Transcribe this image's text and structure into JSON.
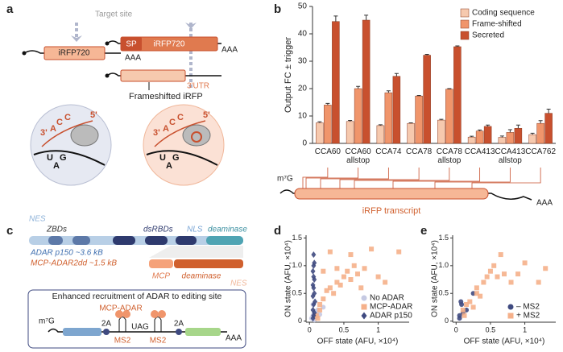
{
  "panel_a": {
    "label": "a",
    "target": "Target site",
    "left_gene": "iRFP720",
    "left_tail": "AAA",
    "sp": "SP",
    "right_gene": "iRFP720",
    "right_tail": "AAA",
    "utr": "3'UTR",
    "frameshift": "Frameshifted iRFP",
    "zoom_left": [
      "3'",
      "A",
      "C",
      "C",
      "5'",
      "U",
      "A",
      "G"
    ],
    "zoom_right": [
      "3'",
      "A",
      "C",
      "C",
      "5'",
      "U",
      "A",
      "G"
    ]
  },
  "panel_c": {
    "label": "c",
    "nes": "NES",
    "zbds": "ZBDs",
    "dsrbds": "dsRBDs",
    "nls": "NLS",
    "deaminase": "deaminase",
    "adar": "ADAR p150 ~3.6 kB",
    "mcp_adar": "MCP-ADAR2dd ~1.5 kB",
    "mcp": "MCP",
    "deaminase2": "deaminase",
    "nes2": "NES",
    "box_title": "Enhanced recruitment of ADAR to editing site",
    "protein": "MCP-ADAR",
    "cap": "m⁷G",
    "p2a_1": "2A",
    "stop": "UAG",
    "p2a_2": "2A",
    "ms2_1": "MS2",
    "ms2_2": "MS2",
    "tail": "AAA"
  },
  "chart_data": [
    {
      "type": "bar",
      "panel": "b",
      "ylabel": "Output FC ± trigger",
      "categories": [
        "CCA60",
        "CCA60 allstop",
        "CCA74",
        "CCA78",
        "CCA78 allstop",
        "CCA413",
        "CCA413 allstop",
        "CCA762"
      ],
      "series": [
        {
          "name": "Coding sequence",
          "color": "#f6c9ae",
          "values": [
            7.5,
            8,
            6.5,
            7.3,
            8.5,
            2.3,
            2.2,
            3.2
          ],
          "errors": [
            0.4,
            0.4,
            0.3,
            0.2,
            0.3,
            0.3,
            0.5,
            0.5
          ]
        },
        {
          "name": "Frame-shifted",
          "color": "#f0956b",
          "values": [
            14,
            20,
            18.5,
            17.3,
            19.8,
            4.5,
            4,
            7.3
          ],
          "errors": [
            0.6,
            0.8,
            0.7,
            0.2,
            0.2,
            0.4,
            1,
            1
          ]
        },
        {
          "name": "Secreted",
          "color": "#c8502e",
          "values": [
            44.5,
            45,
            24.5,
            32.2,
            35.3,
            6.2,
            5.5,
            11
          ],
          "errors": [
            2,
            1.8,
            1,
            0.3,
            0.3,
            0.5,
            1.2,
            1.5
          ]
        }
      ],
      "ylim": [
        0,
        50
      ],
      "yticks": [
        0,
        10,
        20,
        30,
        40,
        50
      ],
      "legend": "upper right",
      "annotations": {
        "cap": "m⁷G",
        "transcript": "iRFP transcript",
        "tail": "AAA"
      }
    },
    {
      "type": "scatter",
      "panel": "d",
      "xlabel": "OFF state (AFU, ×10⁴)",
      "ylabel": "ON state (AFU, ×10⁴)",
      "xlim": [
        -0.05,
        1.45
      ],
      "ylim": [
        -0.02,
        1.55
      ],
      "xticks": [
        0,
        0.5,
        1
      ],
      "yticks": [
        0,
        0.5,
        {
          "value": 1,
          "label": "1.0"
        },
        1.5
      ],
      "legend": "lower right",
      "series": [
        {
          "name": "No ADAR",
          "color": "#c5c9e2",
          "marker": "circle",
          "x": [
            0.03,
            0.05,
            0.08,
            0.1,
            0.12,
            0.15,
            0.2,
            0.05,
            0.07,
            0.1
          ],
          "values": [
            0.05,
            0.1,
            0.15,
            0.08,
            0.2,
            0.12,
            0.25,
            0.3,
            0.02,
            0.18
          ]
        },
        {
          "name": "MCP-ADAR",
          "color": "#f5b08a",
          "marker": "square",
          "x": [
            0.1,
            0.15,
            0.2,
            0.25,
            0.3,
            0.35,
            0.4,
            0.45,
            0.5,
            0.55,
            0.6,
            0.65,
            0.7,
            0.75,
            0.8,
            0.9,
            1.0,
            1.1,
            1.3,
            0.3,
            0.2,
            0.15,
            0.4,
            0.6,
            0.12
          ],
          "values": [
            0.1,
            0.3,
            0.4,
            0.55,
            0.6,
            0.5,
            0.7,
            0.65,
            0.8,
            0.9,
            0.75,
            1.0,
            0.85,
            0.6,
            0.95,
            1.3,
            0.8,
            0.7,
            1.25,
            1.25,
            0.9,
            0.2,
            0.95,
            1.2,
            0.05
          ]
        },
        {
          "name": "ADAR p150",
          "color": "#3f4a80",
          "marker": "diamond",
          "x": [
            0.05,
            0.06,
            0.07,
            0.05,
            0.06,
            0.08,
            0.05,
            0.07,
            0.06,
            0.05,
            0.07,
            0.06,
            0.05,
            0.06,
            0.07,
            0.06
          ],
          "values": [
            0.05,
            0.1,
            0.15,
            0.2,
            0.3,
            0.35,
            0.45,
            0.5,
            0.6,
            0.65,
            0.75,
            0.8,
            0.9,
            1.0,
            1.05,
            1.2
          ]
        }
      ]
    },
    {
      "type": "scatter",
      "panel": "e",
      "xlabel": "OFF state (AFU, ×10⁴)",
      "ylabel": "ON state (AFU, ×10⁴)",
      "xlim": [
        -0.05,
        1.45
      ],
      "ylim": [
        -0.02,
        1.55
      ],
      "xticks": [
        0,
        0.5,
        1
      ],
      "yticks": [
        0,
        0.5,
        {
          "value": 1,
          "label": "1.0"
        },
        1.5
      ],
      "legend": "lower right",
      "series": [
        {
          "name": "– MS2",
          "color": "#3f4a80",
          "marker": "circle",
          "x": [
            0.05,
            0.08,
            0.1,
            0.07,
            0.25,
            0.15,
            0.05
          ],
          "values": [
            0.05,
            0.3,
            0.15,
            0.35,
            0.5,
            0.2,
            0.1
          ]
        },
        {
          "name": "+ MS2",
          "color": "#f5b08a",
          "marker": "square",
          "x": [
            0.1,
            0.15,
            0.2,
            0.3,
            0.35,
            0.4,
            0.45,
            0.5,
            0.55,
            0.6,
            0.7,
            0.8,
            0.9,
            1.0,
            1.2,
            1.3,
            0.25,
            0.12,
            0.65,
            0.3
          ],
          "values": [
            0.2,
            0.3,
            0.35,
            0.6,
            0.45,
            0.7,
            0.8,
            0.9,
            1.0,
            0.8,
            0.85,
            0.7,
            0.85,
            1.05,
            0.7,
            0.95,
            0.25,
            0.1,
            1.2,
            0.5
          ]
        }
      ]
    }
  ]
}
